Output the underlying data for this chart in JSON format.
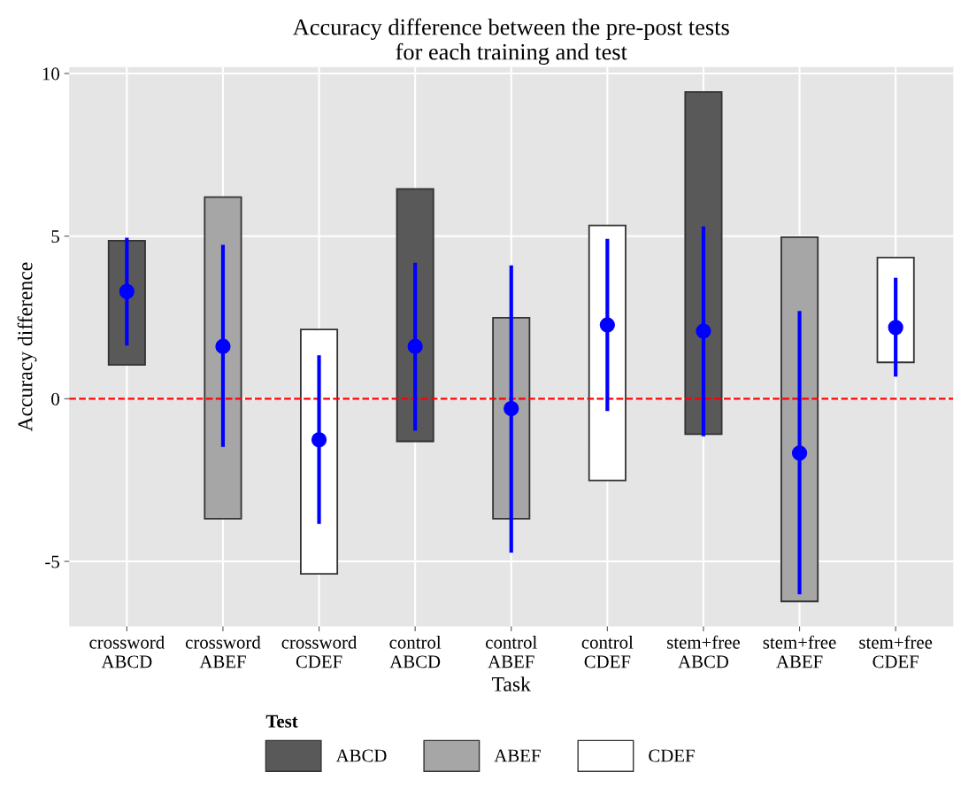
{
  "chart_data": {
    "type": "bar",
    "title": "Accuracy difference between the pre-post tests\nfor each training and test",
    "xlabel": "Task",
    "ylabel": "Accuracy difference",
    "legend_title": "Test",
    "categories": [
      "crossword\nABCD",
      "crossword\nABEF",
      "crossword\nCDEF",
      "control\nABCD",
      "control\nABEF",
      "control\nCDEF",
      "stem+free\nABCD",
      "stem+free\nABEF",
      "stem+free\nCDEF"
    ],
    "series": [
      {
        "name": "ABCD",
        "color": "#595959",
        "base": [
          1.04,
          null,
          null,
          -1.31,
          null,
          null,
          -1.09,
          null,
          null
        ],
        "values": [
          3.82,
          null,
          null,
          7.76,
          null,
          null,
          10.52,
          null,
          null
        ]
      },
      {
        "name": "ABEF",
        "color": "#a6a6a6",
        "base": [
          null,
          -3.69,
          null,
          null,
          -3.69,
          null,
          null,
          -6.23,
          null
        ],
        "values": [
          null,
          9.89,
          null,
          null,
          6.18,
          null,
          null,
          11.2,
          null
        ]
      },
      {
        "name": "CDEF",
        "color": "#ffffff",
        "base": [
          null,
          null,
          -5.38,
          null,
          null,
          -2.51,
          null,
          null,
          1.12
        ],
        "values": [
          null,
          null,
          7.51,
          null,
          null,
          7.84,
          null,
          null,
          3.22
        ]
      },
      {
        "type": "scatter",
        "color": "#0000ff",
        "values": [
          3.3,
          1.61,
          -1.26,
          1.61,
          -0.3,
          2.27,
          2.08,
          -1.67,
          2.19
        ],
        "errors": [
          [
            1.64,
            4.95
          ],
          [
            -1.48,
            4.73
          ],
          [
            -3.85,
            1.34
          ],
          [
            -0.98,
            4.18
          ],
          [
            -4.73,
            4.1
          ],
          [
            -0.38,
            4.92
          ],
          [
            -1.15,
            5.3
          ],
          [
            -6.01,
            2.7
          ],
          [
            0.68,
            3.72
          ]
        ]
      }
    ],
    "ylim": [
      -7,
      10.2
    ],
    "yticks": [
      {
        "value": -5,
        "label": "-5"
      },
      0,
      5,
      10
    ],
    "ref_lines": [
      {
        "axis": "y",
        "value": 0,
        "color": "#ff0000",
        "line_style": "dashed"
      }
    ],
    "grid": true,
    "legend": "bottom",
    "marker": "circle"
  }
}
